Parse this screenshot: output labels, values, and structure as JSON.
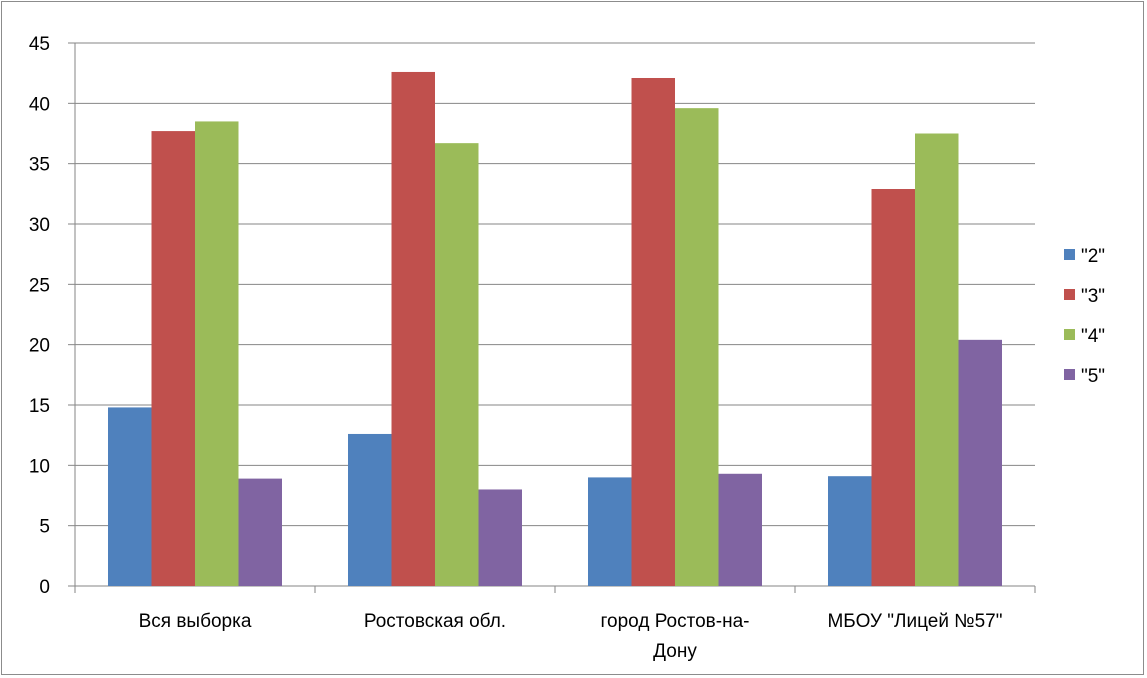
{
  "chart_data": {
    "type": "bar",
    "categories": [
      [
        "Вся выборка"
      ],
      [
        "Ростовская обл."
      ],
      [
        "город Ростов-на-",
        "Дону"
      ],
      [
        "МБОУ \"Лицей №57\""
      ]
    ],
    "series": [
      {
        "name": "\"2\"",
        "color": "#4F81BD",
        "values": [
          14.8,
          12.6,
          9.0,
          9.1
        ]
      },
      {
        "name": "\"3\"",
        "color": "#C0504D",
        "values": [
          37.7,
          42.6,
          42.1,
          32.9
        ]
      },
      {
        "name": "\"4\"",
        "color": "#9BBB59",
        "values": [
          38.5,
          36.7,
          39.6,
          37.5
        ]
      },
      {
        "name": "\"5\"",
        "color": "#8064A2",
        "values": [
          8.9,
          8.0,
          9.3,
          20.4
        ]
      }
    ],
    "ylim": [
      0,
      45
    ],
    "yticks": [
      "0",
      "5",
      "10",
      "15",
      "20",
      "25",
      "30",
      "35",
      "40",
      "45"
    ],
    "grid": true,
    "legend": "right"
  }
}
